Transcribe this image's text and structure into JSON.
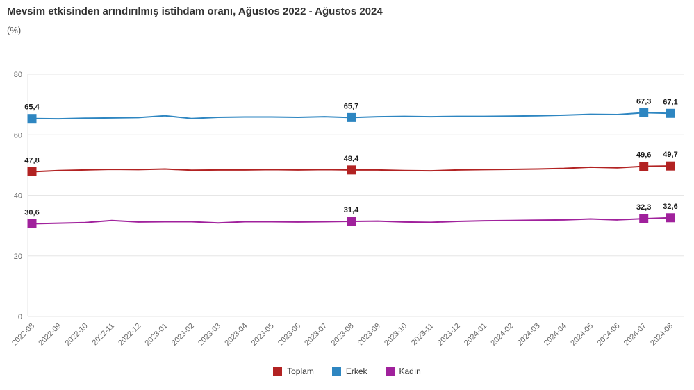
{
  "header": {
    "title": "Mevsim etkisinden arındırılmış istihdam oranı, Ağustos 2022 - Ağustos 2024",
    "subtitle": "(%)"
  },
  "chart_data": {
    "type": "line",
    "title": "Mevsim etkisinden arındırılmış istihdam oranı, Ağustos 2022 - Ağustos 2024",
    "ylabel": "(%)",
    "ylim": [
      0,
      80
    ],
    "yticks": [
      0,
      20,
      40,
      60,
      80
    ],
    "grid": "horizontal",
    "legend_position": "bottom",
    "categories": [
      "2022-08",
      "2022-09",
      "2022-10",
      "2022-11",
      "2022-12",
      "2023-01",
      "2023-02",
      "2023-03",
      "2023-04",
      "2023-05",
      "2023-06",
      "2023-07",
      "2023-08",
      "2023-09",
      "2023-10",
      "2023-11",
      "2023-12",
      "2024-01",
      "2024-02",
      "2024-03",
      "2024-04",
      "2024-05",
      "2024-06",
      "2024-07",
      "2024-08"
    ],
    "series": [
      {
        "name": "Toplam",
        "color": "#b22222",
        "values": [
          47.8,
          48.2,
          48.4,
          48.6,
          48.5,
          48.7,
          48.3,
          48.4,
          48.4,
          48.5,
          48.4,
          48.5,
          48.4,
          48.4,
          48.2,
          48.1,
          48.4,
          48.5,
          48.6,
          48.7,
          48.9,
          49.3,
          49.1,
          49.6,
          49.7
        ],
        "labels": [
          {
            "index": 0,
            "text": "47,8"
          },
          {
            "index": 12,
            "text": "48,4"
          },
          {
            "index": 23,
            "text": "49,6"
          },
          {
            "index": 24,
            "text": "49,7"
          }
        ]
      },
      {
        "name": "Erkek",
        "color": "#2e86c1",
        "values": [
          65.4,
          65.3,
          65.5,
          65.6,
          65.7,
          66.3,
          65.4,
          65.8,
          65.9,
          65.9,
          65.8,
          66.0,
          65.7,
          66.0,
          66.1,
          66.0,
          66.1,
          66.1,
          66.2,
          66.3,
          66.5,
          66.8,
          66.7,
          67.3,
          67.1
        ],
        "labels": [
          {
            "index": 0,
            "text": "65,4"
          },
          {
            "index": 12,
            "text": "65,7"
          },
          {
            "index": 23,
            "text": "67,3"
          },
          {
            "index": 24,
            "text": "67,1"
          }
        ]
      },
      {
        "name": "Kadın",
        "color": "#a0219c",
        "values": [
          30.6,
          30.8,
          31.0,
          31.7,
          31.2,
          31.3,
          31.3,
          30.9,
          31.3,
          31.3,
          31.2,
          31.3,
          31.4,
          31.5,
          31.2,
          31.1,
          31.4,
          31.6,
          31.7,
          31.8,
          31.9,
          32.2,
          31.9,
          32.3,
          32.6
        ],
        "labels": [
          {
            "index": 0,
            "text": "30,6"
          },
          {
            "index": 12,
            "text": "31,4"
          },
          {
            "index": 23,
            "text": "32,3"
          },
          {
            "index": 24,
            "text": "32,6"
          }
        ]
      }
    ]
  }
}
